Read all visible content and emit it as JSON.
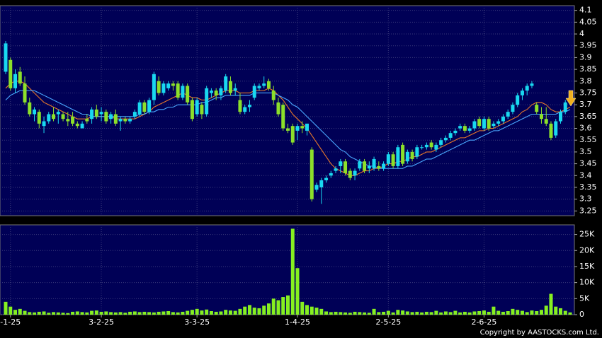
{
  "chart_data": {
    "type": "candlestick",
    "categories": [
      null,
      "-1-25",
      null,
      null,
      null,
      null,
      null,
      null,
      null,
      null,
      null,
      null,
      null,
      null,
      null,
      null,
      null,
      null,
      null,
      null,
      "3-2-25",
      null,
      null,
      null,
      null,
      null,
      null,
      null,
      null,
      null,
      null,
      null,
      null,
      null,
      null,
      null,
      null,
      null,
      null,
      null,
      "3-3-25",
      null,
      null,
      null,
      null,
      null,
      null,
      null,
      null,
      null,
      null,
      null,
      null,
      null,
      null,
      null,
      null,
      null,
      null,
      null,
      null,
      "1-4-25",
      null,
      null,
      null,
      null,
      null,
      null,
      null,
      null,
      null,
      null,
      null,
      null,
      null,
      null,
      null,
      null,
      null,
      null,
      "2-5-25",
      null,
      null,
      null,
      null,
      null,
      null,
      null,
      null,
      null,
      null,
      null,
      null,
      null,
      null,
      null,
      null,
      null,
      null,
      null,
      "2-6-25",
      null,
      null,
      null,
      null,
      null,
      null,
      null,
      null,
      null,
      null,
      null,
      null,
      null,
      null,
      null,
      null,
      null,
      null
    ],
    "open": [
      3.84,
      3.89,
      3.77,
      3.84,
      3.79,
      3.71,
      3.66,
      3.67,
      3.61,
      3.63,
      3.66,
      3.66,
      3.66,
      3.64,
      3.65,
      3.62,
      3.6,
      3.64,
      3.64,
      3.68,
      3.66,
      3.67,
      3.64,
      3.66,
      3.63,
      3.64,
      3.63,
      3.65,
      3.66,
      3.71,
      3.67,
      3.72,
      3.8,
      3.75,
      3.77,
      3.79,
      3.79,
      3.73,
      3.78,
      3.72,
      3.66,
      3.7,
      3.66,
      3.75,
      3.76,
      3.74,
      3.76,
      3.8,
      3.76,
      3.72,
      3.67,
      3.69,
      3.73,
      3.77,
      3.78,
      3.8,
      3.76,
      3.71,
      3.7,
      3.6,
      3.61,
      3.59,
      3.61,
      3.59,
      3.51,
      3.34,
      3.35,
      3.38,
      3.4,
      3.42,
      3.44,
      3.46,
      3.42,
      3.4,
      3.43,
      3.46,
      3.43,
      3.43,
      3.44,
      3.43,
      3.45,
      3.49,
      3.44,
      3.53,
      3.46,
      3.5,
      3.48,
      3.52,
      3.52,
      3.54,
      3.51,
      3.53,
      3.55,
      3.56,
      3.58,
      3.6,
      3.61,
      3.59,
      3.6,
      3.64,
      3.6,
      3.64,
      3.61,
      3.62,
      3.63,
      3.65,
      3.67,
      3.7,
      3.74,
      3.76,
      3.78,
      3.7,
      3.66,
      3.64,
      3.62,
      3.57,
      3.63,
      3.67,
      3.71
    ],
    "high": [
      3.97,
      3.9,
      3.85,
      3.86,
      3.82,
      3.73,
      3.69,
      3.68,
      3.65,
      3.67,
      3.69,
      3.68,
      3.67,
      3.67,
      3.67,
      3.63,
      3.63,
      3.66,
      3.69,
      3.7,
      3.69,
      3.68,
      3.67,
      3.68,
      3.65,
      3.65,
      3.65,
      3.68,
      3.72,
      3.72,
      3.73,
      3.84,
      3.82,
      3.8,
      3.8,
      3.8,
      3.8,
      3.79,
      3.79,
      3.73,
      3.73,
      3.71,
      3.78,
      3.77,
      3.77,
      3.78,
      3.83,
      3.82,
      3.79,
      3.75,
      3.7,
      3.72,
      3.79,
      3.79,
      3.82,
      3.81,
      3.78,
      3.73,
      3.71,
      3.62,
      3.62,
      3.62,
      3.63,
      3.62,
      3.52,
      3.37,
      3.39,
      3.4,
      3.42,
      3.44,
      3.47,
      3.47,
      3.43,
      3.43,
      3.47,
      3.47,
      3.46,
      3.48,
      3.46,
      3.46,
      3.5,
      3.5,
      3.53,
      3.54,
      3.51,
      3.51,
      3.53,
      3.53,
      3.54,
      3.55,
      3.54,
      3.56,
      3.57,
      3.59,
      3.6,
      3.62,
      3.62,
      3.61,
      3.64,
      3.65,
      3.65,
      3.65,
      3.63,
      3.64,
      3.66,
      3.68,
      3.71,
      3.75,
      3.77,
      3.79,
      3.8,
      3.71,
      3.69,
      3.69,
      3.63,
      3.64,
      3.68,
      3.72,
      3.74
    ],
    "low": [
      3.83,
      3.76,
      3.75,
      3.78,
      3.7,
      3.65,
      3.63,
      3.6,
      3.58,
      3.62,
      3.63,
      3.62,
      3.63,
      3.61,
      3.61,
      3.6,
      3.6,
      3.62,
      3.62,
      3.64,
      3.63,
      3.62,
      3.62,
      3.61,
      3.59,
      3.62,
      3.62,
      3.64,
      3.65,
      3.66,
      3.66,
      3.7,
      3.74,
      3.74,
      3.76,
      3.76,
      3.72,
      3.72,
      3.7,
      3.63,
      3.65,
      3.64,
      3.65,
      3.73,
      3.72,
      3.72,
      3.75,
      3.74,
      3.74,
      3.66,
      3.66,
      3.67,
      3.72,
      3.76,
      3.77,
      3.76,
      3.7,
      3.65,
      3.59,
      3.58,
      3.53,
      3.55,
      3.58,
      3.57,
      3.29,
      3.33,
      3.28,
      3.37,
      3.39,
      3.41,
      3.41,
      3.4,
      3.38,
      3.38,
      3.42,
      3.41,
      3.41,
      3.42,
      3.42,
      3.42,
      3.44,
      3.43,
      3.43,
      3.44,
      3.45,
      3.46,
      3.47,
      3.51,
      3.51,
      3.51,
      3.5,
      3.52,
      3.54,
      3.55,
      3.57,
      3.59,
      3.58,
      3.58,
      3.59,
      3.6,
      3.59,
      3.59,
      3.6,
      3.61,
      3.62,
      3.64,
      3.66,
      3.69,
      3.72,
      3.74,
      3.77,
      3.66,
      3.62,
      3.61,
      3.55,
      3.56,
      3.62,
      3.66,
      3.7
    ],
    "close": [
      3.96,
      3.77,
      3.83,
      3.79,
      3.71,
      3.66,
      3.68,
      3.62,
      3.63,
      3.66,
      3.64,
      3.67,
      3.64,
      3.63,
      3.62,
      3.61,
      3.62,
      3.63,
      3.68,
      3.65,
      3.67,
      3.63,
      3.66,
      3.62,
      3.64,
      3.63,
      3.64,
      3.67,
      3.71,
      3.67,
      3.72,
      3.83,
      3.75,
      3.79,
      3.79,
      3.78,
      3.73,
      3.78,
      3.71,
      3.64,
      3.72,
      3.66,
      3.77,
      3.76,
      3.74,
      3.77,
      3.82,
      3.75,
      3.77,
      3.67,
      3.69,
      3.7,
      3.78,
      3.78,
      3.79,
      3.77,
      3.72,
      3.66,
      3.6,
      3.59,
      3.54,
      3.61,
      3.6,
      3.62,
      3.3,
      3.36,
      3.38,
      3.39,
      3.41,
      3.43,
      3.46,
      3.41,
      3.39,
      3.42,
      3.46,
      3.42,
      3.44,
      3.47,
      3.43,
      3.45,
      3.49,
      3.44,
      3.52,
      3.45,
      3.5,
      3.47,
      3.52,
      3.52,
      3.53,
      3.52,
      3.53,
      3.55,
      3.56,
      3.58,
      3.59,
      3.61,
      3.59,
      3.6,
      3.63,
      3.61,
      3.64,
      3.6,
      3.62,
      3.63,
      3.65,
      3.67,
      3.7,
      3.74,
      3.76,
      3.78,
      3.79,
      3.67,
      3.64,
      3.62,
      3.56,
      3.63,
      3.67,
      3.71,
      3.73
    ],
    "up_color": "#19d8f0",
    "down_color": "#8ce02a",
    "series": [
      {
        "color": "#e8782a",
        "values": [
          3.77,
          3.79,
          3.8,
          3.8,
          3.79,
          3.77,
          3.75,
          3.73,
          3.71,
          3.7,
          3.69,
          3.68,
          3.67,
          3.66,
          3.65,
          3.64,
          3.64,
          3.64,
          3.65,
          3.65,
          3.65,
          3.65,
          3.65,
          3.64,
          3.64,
          3.64,
          3.64,
          3.64,
          3.65,
          3.66,
          3.67,
          3.69,
          3.7,
          3.71,
          3.72,
          3.73,
          3.74,
          3.75,
          3.74,
          3.73,
          3.73,
          3.72,
          3.72,
          3.73,
          3.74,
          3.75,
          3.76,
          3.76,
          3.76,
          3.75,
          3.75,
          3.75,
          3.76,
          3.76,
          3.76,
          3.77,
          3.76,
          3.74,
          3.72,
          3.69,
          3.66,
          3.64,
          3.62,
          3.6,
          3.57,
          3.54,
          3.51,
          3.48,
          3.45,
          3.43,
          3.42,
          3.41,
          3.4,
          3.4,
          3.41,
          3.42,
          3.42,
          3.43,
          3.43,
          3.44,
          3.45,
          3.45,
          3.46,
          3.46,
          3.47,
          3.48,
          3.48,
          3.49,
          3.5,
          3.5,
          3.51,
          3.52,
          3.53,
          3.54,
          3.55,
          3.56,
          3.56,
          3.57,
          3.58,
          3.59,
          3.59,
          3.6,
          3.6,
          3.61,
          3.62,
          3.63,
          3.64,
          3.65,
          3.67,
          3.68,
          3.7,
          3.71,
          3.71,
          3.7,
          3.68,
          3.67,
          3.67,
          3.68,
          3.69
        ]
      },
      {
        "color": "#4aa8ff",
        "values": [
          3.72,
          3.74,
          3.75,
          3.76,
          3.76,
          3.76,
          3.76,
          3.75,
          3.74,
          3.73,
          3.72,
          3.71,
          3.7,
          3.69,
          3.68,
          3.67,
          3.66,
          3.66,
          3.65,
          3.65,
          3.65,
          3.65,
          3.65,
          3.65,
          3.65,
          3.65,
          3.65,
          3.65,
          3.66,
          3.66,
          3.67,
          3.67,
          3.68,
          3.68,
          3.69,
          3.69,
          3.7,
          3.7,
          3.7,
          3.7,
          3.7,
          3.71,
          3.71,
          3.72,
          3.73,
          3.73,
          3.74,
          3.74,
          3.74,
          3.74,
          3.74,
          3.74,
          3.75,
          3.75,
          3.75,
          3.75,
          3.75,
          3.74,
          3.73,
          3.72,
          3.7,
          3.69,
          3.67,
          3.65,
          3.63,
          3.61,
          3.59,
          3.57,
          3.55,
          3.53,
          3.51,
          3.5,
          3.48,
          3.47,
          3.46,
          3.45,
          3.44,
          3.44,
          3.43,
          3.43,
          3.43,
          3.43,
          3.43,
          3.43,
          3.44,
          3.44,
          3.45,
          3.46,
          3.47,
          3.47,
          3.48,
          3.49,
          3.5,
          3.51,
          3.52,
          3.53,
          3.54,
          3.55,
          3.55,
          3.56,
          3.57,
          3.58,
          3.59,
          3.59,
          3.6,
          3.61,
          3.62,
          3.63,
          3.64,
          3.65,
          3.66,
          3.66,
          3.66,
          3.66,
          3.66,
          3.66,
          3.67,
          3.67,
          3.68
        ]
      }
    ],
    "ylim": [
      3.23,
      4.12
    ],
    "yticks": [
      3.25,
      3.3,
      3.35,
      3.4,
      3.45,
      3.5,
      3.55,
      3.6,
      3.65,
      3.7,
      3.75,
      3.8,
      3.85,
      3.9,
      3.95,
      4,
      4.05,
      4.1
    ],
    "grid": true,
    "volume": {
      "color": "#86f020",
      "values": [
        4000,
        2500,
        1500,
        1800,
        1200,
        800,
        700,
        900,
        1000,
        600,
        800,
        700,
        600,
        500,
        900,
        1000,
        800,
        700,
        1200,
        1300,
        900,
        1000,
        800,
        700,
        800,
        600,
        900,
        1000,
        800,
        900,
        800,
        700,
        900,
        1000,
        1100,
        800,
        700,
        900,
        1200,
        1500,
        1800,
        1300,
        1600,
        1100,
        900,
        1000,
        1500,
        1300,
        1200,
        1800,
        2500,
        3000,
        2200,
        2000,
        2800,
        3500,
        5000,
        4500,
        5500,
        6000,
        26800,
        14500,
        4000,
        3000,
        2500,
        2200,
        1800,
        1000,
        800,
        900,
        800,
        700,
        600,
        900,
        800,
        700,
        600,
        1800,
        800,
        900,
        1200,
        700,
        1500,
        1300,
        1000,
        800,
        900,
        700,
        900,
        800,
        1200,
        700,
        1000,
        800,
        1200,
        700,
        900,
        700,
        1000,
        1100,
        1300,
        900,
        2500,
        1200,
        900,
        1100,
        1800,
        1500,
        1200,
        800,
        1300,
        1100,
        1500,
        2800,
        6500,
        2500,
        2000,
        1200,
        700
      ],
      "ylim": [
        0,
        28000
      ],
      "yticks": [
        0,
        {
          "value": 5000,
          "label": "5K"
        },
        {
          "value": 10000,
          "label": "10K"
        },
        {
          "value": 15000,
          "label": "15K"
        },
        {
          "value": 20000,
          "label": "20K"
        },
        {
          "value": 25000,
          "label": "25K"
        }
      ]
    },
    "footnote": "Copyright by AASTOCKS.com Ltd."
  }
}
